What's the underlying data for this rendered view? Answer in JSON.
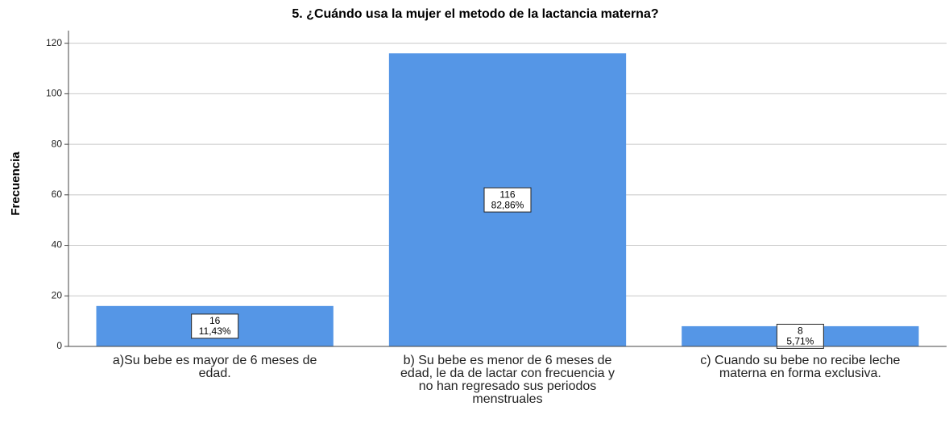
{
  "chart_data": {
    "type": "bar",
    "title": "5. ¿Cuándo usa la mujer el metodo de la lactancia materna?",
    "ylabel": "Frecuencia",
    "categories": [
      "a)Su bebe es mayor de 6 meses de edad.",
      "b) Su bebe es menor de 6 meses de edad, le da de lactar con frecuencia y no han regresado sus periodos menstruales",
      "c) Cuando su bebe no recibe leche materna en forma exclusiva."
    ],
    "values": [
      16,
      116,
      8
    ],
    "percentage_labels": [
      "11,43%",
      "82,86%",
      "5,71%"
    ],
    "color": "#5596e6",
    "ylim": [
      0,
      125
    ],
    "yticks": [
      0,
      20,
      40,
      60,
      80,
      100,
      120
    ],
    "grid": true
  }
}
